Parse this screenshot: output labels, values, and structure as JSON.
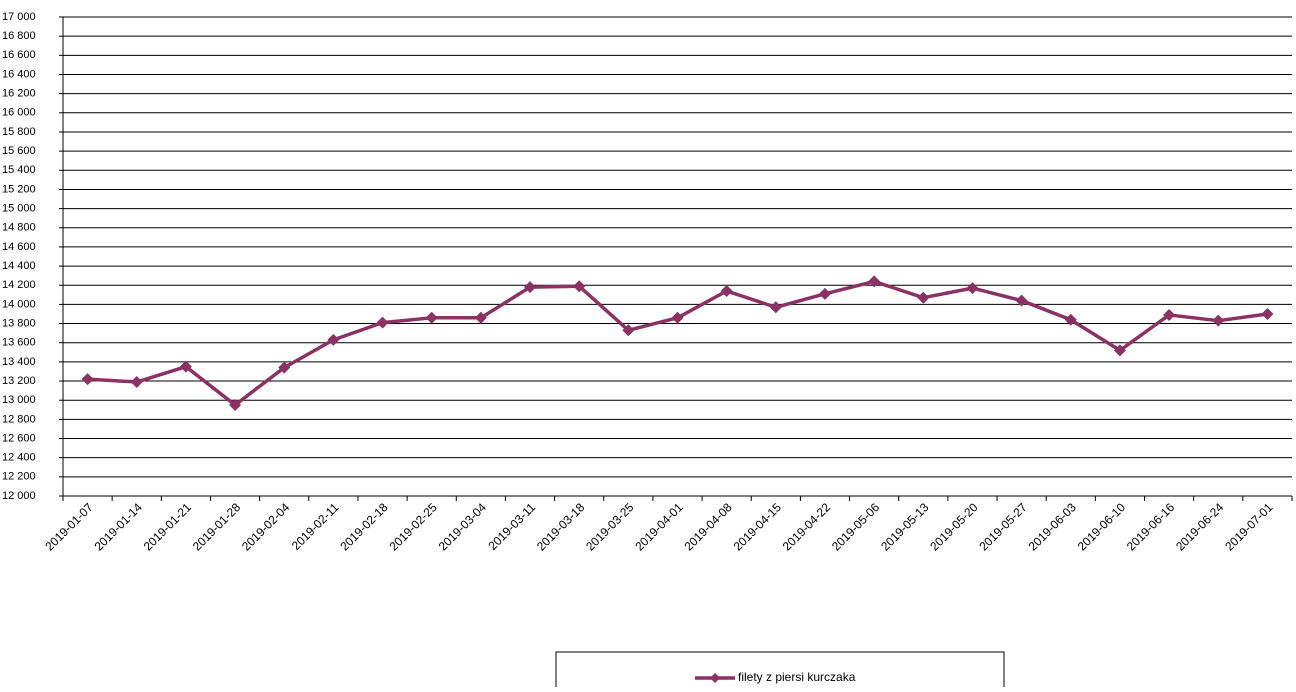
{
  "chart_data": {
    "type": "line",
    "categories": [
      "2019-01-07",
      "2019-01-14",
      "2019-01-21",
      "2019-01-28",
      "2019-02-04",
      "2019-02-11",
      "2019-02-18",
      "2019-02-25",
      "2019-03-04",
      "2019-03-11",
      "2019-03-18",
      "2019-03-25",
      "2019-04-01",
      "2019-04-08",
      "2019-04-15",
      "2019-04-22",
      "2019-05-06",
      "2019-05-13",
      "2019-05-20",
      "2019-05-27",
      "2019-06-03",
      "2019-06-10",
      "2019-06-16",
      "2019-06-24",
      "2019-07-01"
    ],
    "series": [
      {
        "name": "filety z piersi kurczaka",
        "color": "#8b3163",
        "values": [
          13220,
          13190,
          13350,
          12950,
          13340,
          13630,
          13810,
          13860,
          13860,
          14180,
          14190,
          13730,
          13860,
          14140,
          13970,
          14110,
          14240,
          14070,
          14170,
          14040,
          13840,
          13520,
          13890,
          13830,
          13900
        ]
      }
    ],
    "ylim": [
      12000,
      17000
    ],
    "yticks": [
      {
        "value": 12000,
        "label": "12 000"
      },
      {
        "value": 12200,
        "label": "12 200"
      },
      {
        "value": 12400,
        "label": "12 400"
      },
      {
        "value": 12600,
        "label": "12 600"
      },
      {
        "value": 12800,
        "label": "12 800"
      },
      {
        "value": 13000,
        "label": "13 000"
      },
      {
        "value": 13200,
        "label": "13 200"
      },
      {
        "value": 13400,
        "label": "13 400"
      },
      {
        "value": 13600,
        "label": "13 600"
      },
      {
        "value": 13800,
        "label": "13 800"
      },
      {
        "value": 14000,
        "label": "14 000"
      },
      {
        "value": 14200,
        "label": "14 200"
      },
      {
        "value": 14400,
        "label": "14 400"
      },
      {
        "value": 14600,
        "label": "14 600"
      },
      {
        "value": 14800,
        "label": "14 800"
      },
      {
        "value": 15000,
        "label": "15 000"
      },
      {
        "value": 15200,
        "label": "15 200"
      },
      {
        "value": 15400,
        "label": "15 400"
      },
      {
        "value": 15600,
        "label": "15 600"
      },
      {
        "value": 15800,
        "label": "15 800"
      },
      {
        "value": 16000,
        "label": "16 000"
      },
      {
        "value": 16200,
        "label": "16 200"
      },
      {
        "value": 16400,
        "label": "16 400"
      },
      {
        "value": 16600,
        "label": "16 600"
      },
      {
        "value": 16800,
        "label": "16 800"
      },
      {
        "value": 17000,
        "label": "17 000"
      }
    ],
    "grid": true,
    "legend": "bottom"
  }
}
